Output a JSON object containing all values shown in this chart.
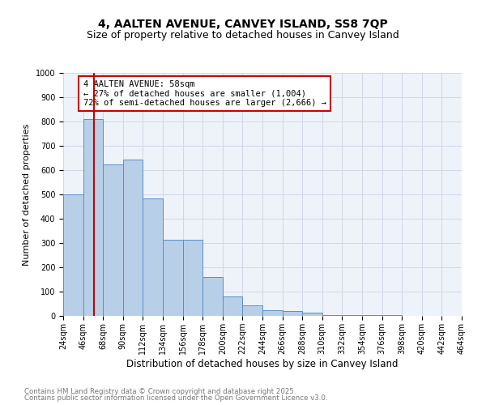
{
  "title": "4, AALTEN AVENUE, CANVEY ISLAND, SS8 7QP",
  "subtitle": "Size of property relative to detached houses in Canvey Island",
  "xlabel": "Distribution of detached houses by size in Canvey Island",
  "ylabel": "Number of detached properties",
  "bar_values": [
    500,
    810,
    625,
    645,
    485,
    315,
    315,
    160,
    80,
    45,
    22,
    20,
    12,
    5,
    2,
    5,
    2,
    1,
    1,
    1
  ],
  "bin_labels": [
    "24sqm",
    "46sqm",
    "68sqm",
    "90sqm",
    "112sqm",
    "134sqm",
    "156sqm",
    "178sqm",
    "200sqm",
    "222sqm",
    "244sqm",
    "266sqm",
    "288sqm",
    "310sqm",
    "332sqm",
    "354sqm",
    "376sqm",
    "398sqm",
    "420sqm",
    "442sqm",
    "464sqm"
  ],
  "bar_color": "#b8cfe8",
  "bar_edge_color": "#5b8dc8",
  "grid_color": "#d0d8e8",
  "background_color": "#eef2f9",
  "vline_color": "#cc0000",
  "annotation_text": "4 AALTEN AVENUE: 58sqm\n← 27% of detached houses are smaller (1,004)\n72% of semi-detached houses are larger (2,666) →",
  "annotation_box_color": "#ffffff",
  "annotation_box_edge": "#cc0000",
  "ylim": [
    0,
    1000
  ],
  "yticks": [
    0,
    100,
    200,
    300,
    400,
    500,
    600,
    700,
    800,
    900,
    1000
  ],
  "footer_line1": "Contains HM Land Registry data © Crown copyright and database right 2025.",
  "footer_line2": "Contains public sector information licensed under the Open Government Licence v3.0.",
  "title_fontsize": 10,
  "subtitle_fontsize": 9,
  "tick_fontsize": 7,
  "annotation_fontsize": 7.5,
  "ylabel_fontsize": 8,
  "xlabel_fontsize": 8.5
}
